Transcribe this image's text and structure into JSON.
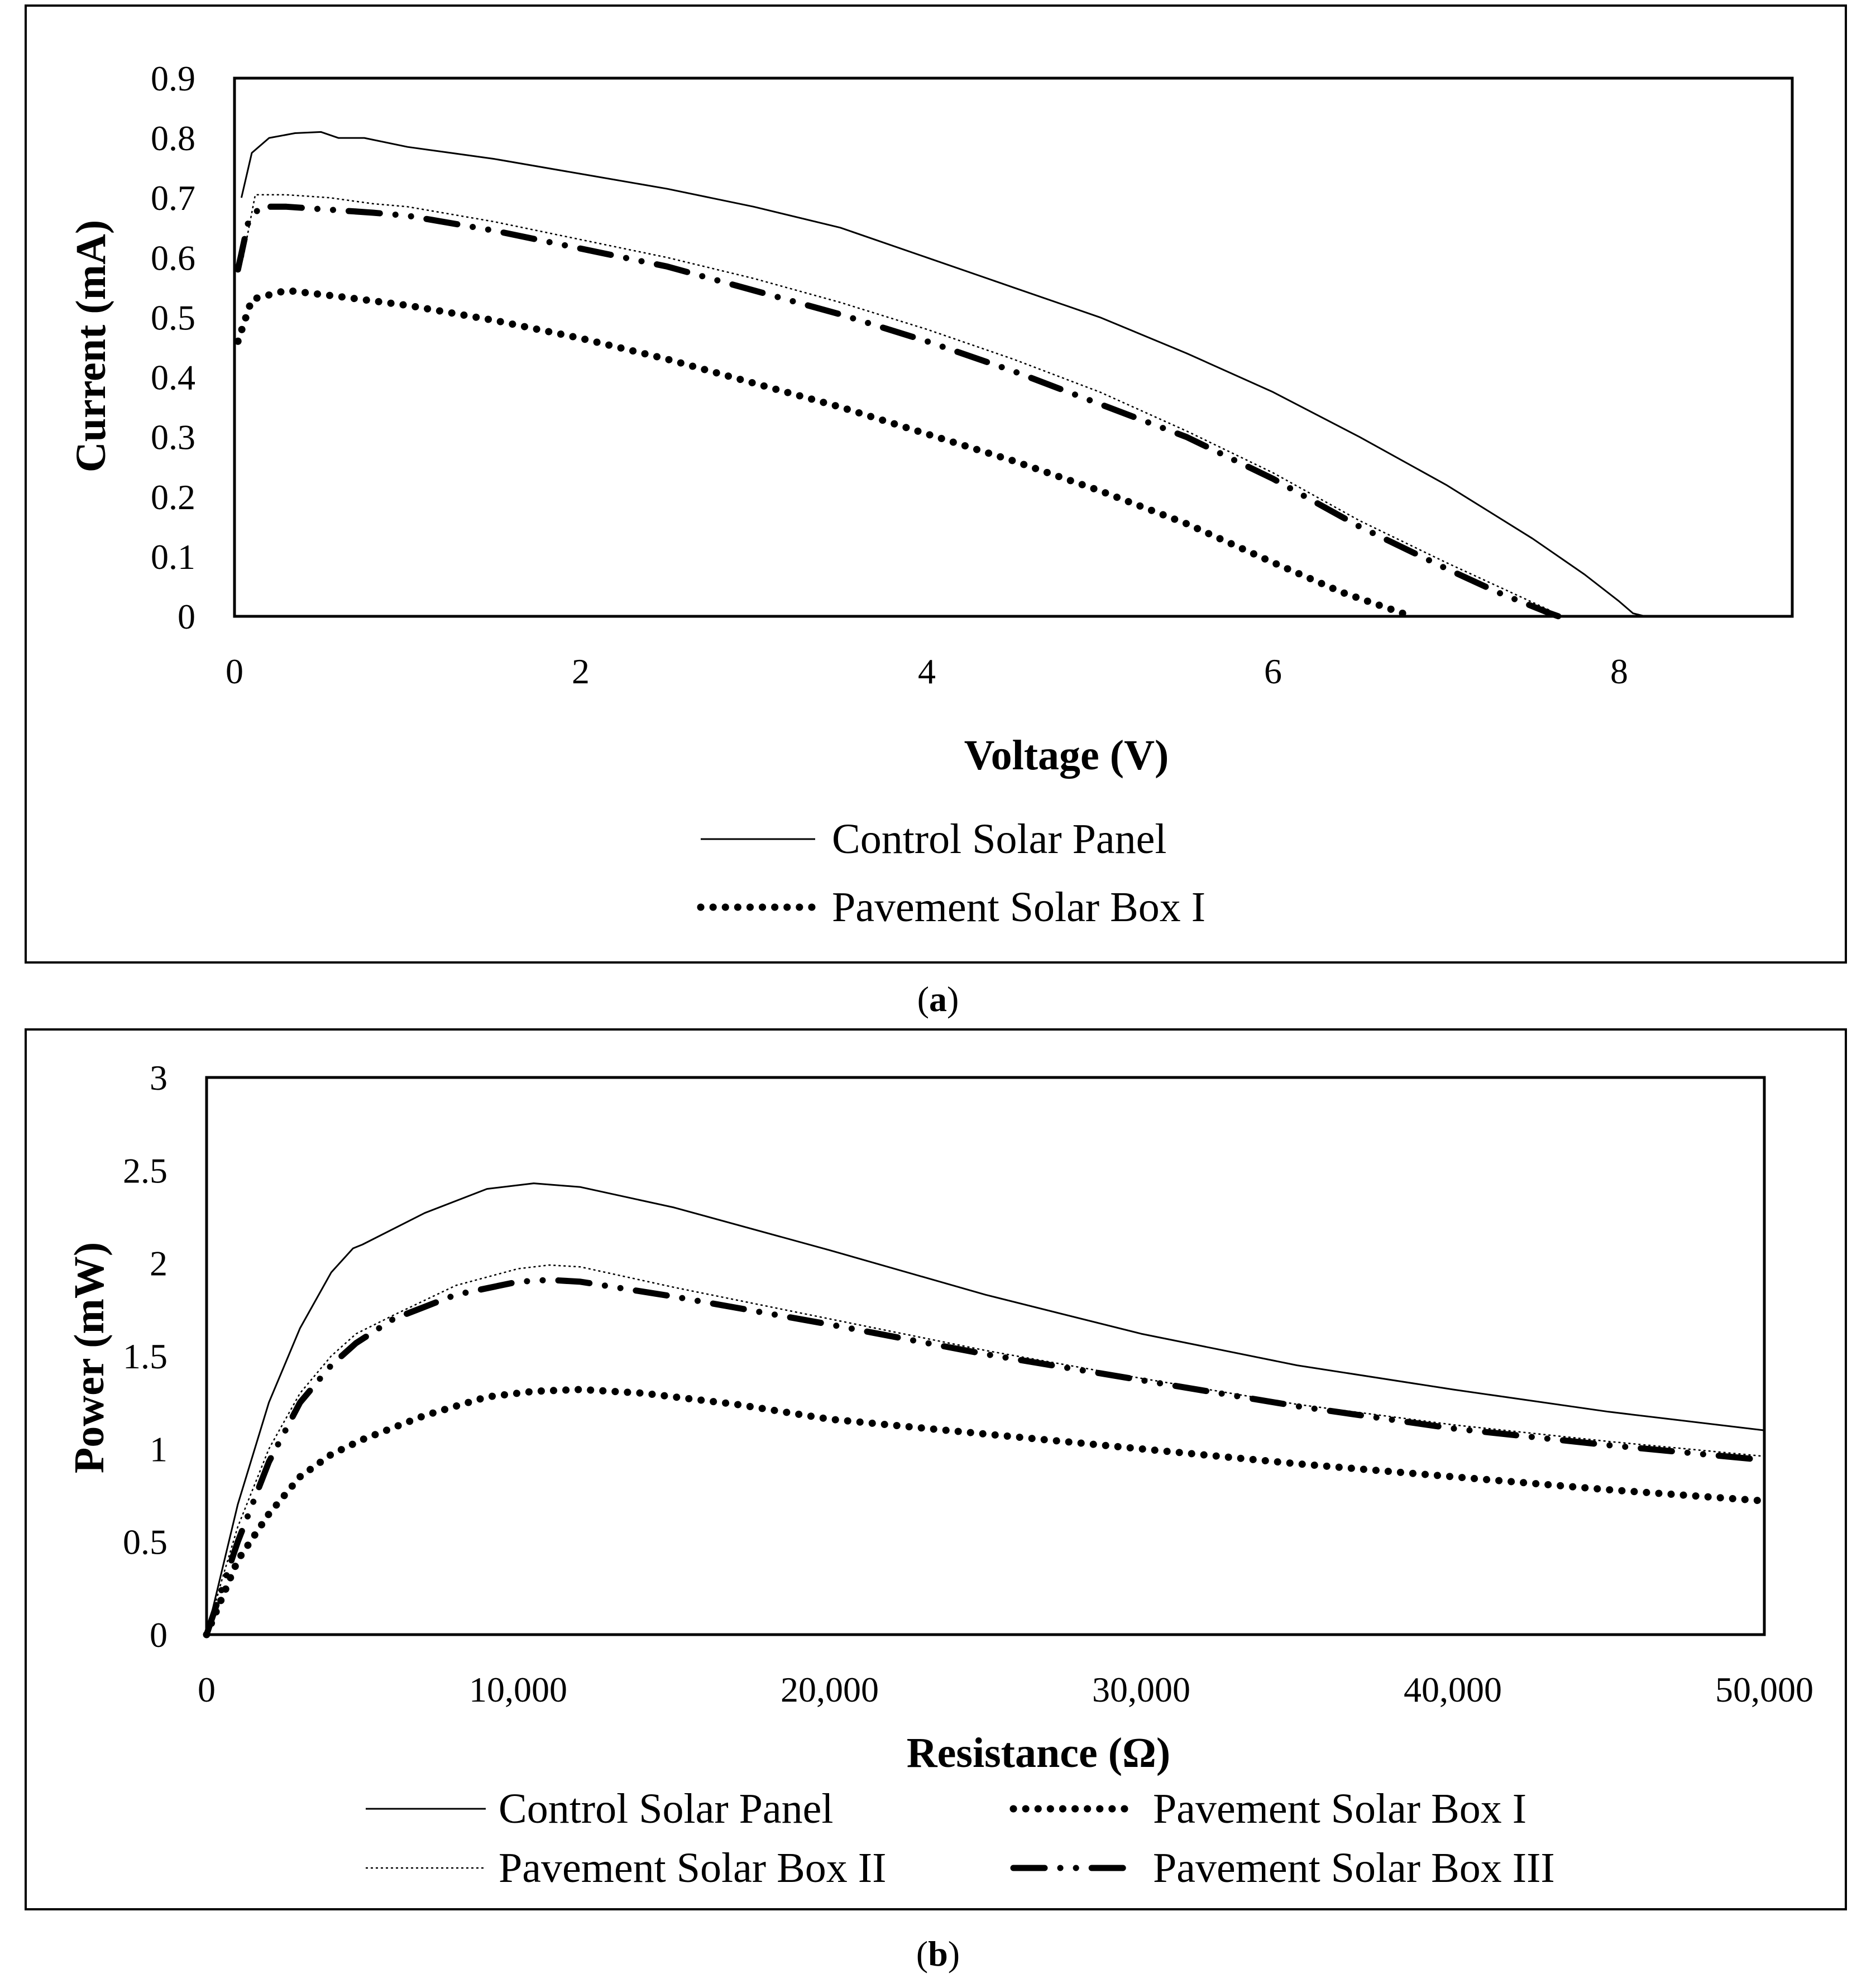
{
  "chart_data": [
    {
      "type": "line",
      "panel_label": "a",
      "title": "",
      "xlabel": "Voltage (V)",
      "ylabel": "Current (mA)",
      "xlim": [
        0,
        9
      ],
      "ylim": [
        0,
        0.9
      ],
      "x_ticks": [
        "0",
        "2",
        "4",
        "6",
        "8"
      ],
      "y_ticks": [
        "0",
        "0.1",
        "0.2",
        "0.3",
        "0.4",
        "0.5",
        "0.6",
        "0.7",
        "0.8",
        "0.9"
      ],
      "grid": false,
      "series": [
        {
          "name": "Control Solar Panel",
          "style": "solid-thin",
          "show_in_legend": true,
          "x": [
            0.04,
            0.1,
            0.2,
            0.35,
            0.5,
            0.6,
            0.75,
            1.0,
            1.25,
            1.5,
            2.0,
            2.5,
            3.0,
            3.5,
            4.0,
            4.5,
            5.0,
            5.5,
            6.0,
            6.5,
            7.0,
            7.5,
            7.8,
            8.0,
            8.08,
            8.15
          ],
          "y": [
            0.7,
            0.775,
            0.8,
            0.808,
            0.81,
            0.8,
            0.8,
            0.785,
            0.775,
            0.765,
            0.74,
            0.715,
            0.685,
            0.65,
            0.6,
            0.55,
            0.5,
            0.44,
            0.375,
            0.3,
            0.22,
            0.13,
            0.07,
            0.025,
            0.005,
            0.0
          ]
        },
        {
          "name": "Pavement Solar Box I",
          "style": "dotted-thick",
          "show_in_legend": true,
          "x": [
            0.02,
            0.1,
            0.3,
            0.6,
            1.0,
            1.5,
            2.0,
            2.5,
            3.0,
            3.5,
            4.0,
            4.5,
            5.0,
            5.5,
            6.0,
            6.4,
            6.8
          ],
          "y": [
            0.46,
            0.53,
            0.545,
            0.535,
            0.52,
            0.495,
            0.465,
            0.43,
            0.39,
            0.35,
            0.305,
            0.26,
            0.21,
            0.155,
            0.09,
            0.04,
            0.0
          ]
        },
        {
          "name": "Pavement Solar Box II",
          "style": "dotted-thin",
          "show_in_legend": false,
          "x": [
            0.05,
            0.12,
            0.3,
            0.55,
            0.8,
            1.0,
            1.5,
            2.0,
            2.5,
            3.0,
            3.5,
            4.0,
            4.5,
            5.0,
            5.5,
            6.0,
            6.5,
            7.0,
            7.3,
            7.6,
            7.65
          ],
          "y": [
            0.6,
            0.705,
            0.705,
            0.7,
            0.69,
            0.685,
            0.66,
            0.63,
            0.6,
            0.565,
            0.525,
            0.48,
            0.43,
            0.375,
            0.31,
            0.24,
            0.16,
            0.09,
            0.05,
            0.01,
            0.0
          ]
        },
        {
          "name": "Pavement Solar Box III",
          "style": "dash-dot-thick",
          "show_in_legend": false,
          "x": [
            0.02,
            0.08,
            0.15,
            0.3,
            0.55,
            0.8,
            1.0,
            1.5,
            2.0,
            2.5,
            3.0,
            3.5,
            4.0,
            4.5,
            5.0,
            5.5,
            6.0,
            6.5,
            7.0,
            7.3,
            7.6,
            7.65
          ],
          "y": [
            0.58,
            0.66,
            0.685,
            0.685,
            0.68,
            0.675,
            0.67,
            0.645,
            0.615,
            0.585,
            0.545,
            0.505,
            0.46,
            0.41,
            0.355,
            0.3,
            0.23,
            0.15,
            0.08,
            0.04,
            0.005,
            0.0
          ]
        }
      ],
      "legend_position": "bottom-center"
    },
    {
      "type": "line",
      "panel_label": "b",
      "title": "",
      "xlabel": "Resistance (Ω)",
      "ylabel": "Power (mW)",
      "xlim": [
        0,
        50000
      ],
      "ylim": [
        0,
        3
      ],
      "x_ticks": [
        "0",
        "10,000",
        "20,000",
        "30,000",
        "40,000",
        "50,000"
      ],
      "y_ticks": [
        "0",
        "0.5",
        "1",
        "1.5",
        "2",
        "2.5",
        "3"
      ],
      "grid": false,
      "series": [
        {
          "name": "Control Solar Panel",
          "style": "solid-thin",
          "show_in_legend": true,
          "x": [
            0,
            500,
            1000,
            2000,
            3000,
            4000,
            4700,
            5000,
            7000,
            9000,
            10500,
            12000,
            15000,
            20000,
            25000,
            30000,
            35000,
            40000,
            45000,
            50000
          ],
          "y": [
            0,
            0.35,
            0.7,
            1.25,
            1.65,
            1.95,
            2.08,
            2.1,
            2.27,
            2.4,
            2.43,
            2.41,
            2.3,
            2.07,
            1.83,
            1.62,
            1.45,
            1.32,
            1.2,
            1.1
          ]
        },
        {
          "name": "Pavement Solar Box I",
          "style": "dotted-thick",
          "show_in_legend": true,
          "x": [
            0,
            500,
            1000,
            2000,
            3000,
            4000,
            5000,
            7000,
            9000,
            10500,
            12000,
            14000,
            17000,
            20000,
            25000,
            30000,
            35000,
            40000,
            45000,
            50000
          ],
          "y": [
            0,
            0.2,
            0.4,
            0.65,
            0.85,
            0.97,
            1.05,
            1.18,
            1.28,
            1.31,
            1.32,
            1.3,
            1.24,
            1.16,
            1.08,
            1.0,
            0.92,
            0.85,
            0.78,
            0.72
          ]
        },
        {
          "name": "Pavement Solar Box II",
          "style": "dotted-thin",
          "show_in_legend": true,
          "x": [
            0,
            500,
            1000,
            2000,
            3000,
            4000,
            4800,
            6000,
            8000,
            10000,
            11000,
            12000,
            15000,
            20000,
            25000,
            30000,
            35000,
            40000,
            45000,
            50000
          ],
          "y": [
            0,
            0.3,
            0.58,
            1.0,
            1.3,
            1.5,
            1.62,
            1.72,
            1.88,
            1.97,
            1.99,
            1.98,
            1.87,
            1.7,
            1.53,
            1.38,
            1.24,
            1.13,
            1.04,
            0.96
          ]
        },
        {
          "name": "Pavement Solar Box III",
          "style": "dash-dot-thick",
          "show_in_legend": true,
          "x": [
            0,
            500,
            1000,
            2000,
            3000,
            4000,
            4800,
            6000,
            8000,
            10000,
            11000,
            12000,
            15000,
            20000,
            25000,
            30000,
            35000,
            40000,
            45000,
            50000
          ],
          "y": [
            0,
            0.25,
            0.5,
            0.93,
            1.25,
            1.45,
            1.57,
            1.7,
            1.83,
            1.9,
            1.91,
            1.9,
            1.82,
            1.67,
            1.51,
            1.37,
            1.23,
            1.11,
            1.02,
            0.94
          ]
        }
      ],
      "legend_position": "bottom-center"
    }
  ]
}
